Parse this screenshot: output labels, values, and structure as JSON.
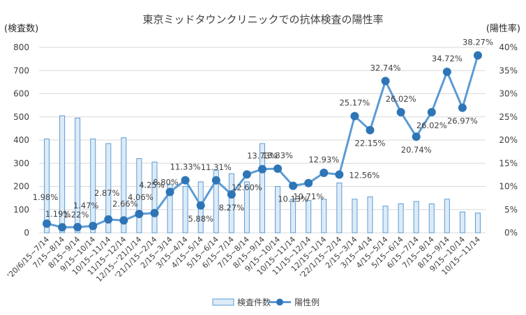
{
  "chart_data": {
    "type": "bar",
    "title": "東京ミッドタウンクリニックでの抗体検査の陽性率",
    "y_left_label": "(検査数)",
    "y_right_label": "(陽性率)",
    "y_left_ticks": [
      "0",
      "100",
      "200",
      "300",
      "400",
      "500",
      "600",
      "700",
      "800"
    ],
    "y_right_ticks": [
      "0%",
      "5%",
      "10%",
      "15%",
      "20%",
      "25%",
      "30%",
      "35%",
      "40%"
    ],
    "ylim_left": [
      0,
      800
    ],
    "ylim_right": [
      0,
      40
    ],
    "grid": true,
    "legend_position": "bottom",
    "categories": [
      "'20/6/15~7/14",
      "7/15~8/14",
      "8/15~9/14",
      "9/15~10/14",
      "10/15~11/14",
      "11/15~12/14",
      "12/15~'21/1/14",
      "'21/1/15~2/14",
      "2/15~3/14",
      "3/15~4/14",
      "4/15~5/14",
      "5/15~6/14",
      "6/15~7/14",
      "7/15~8/14",
      "8/15~9/14",
      "9/15~10/14",
      "10/15~11/14",
      "11/15~12/14",
      "12/15~1/14",
      "'22/1/15~2/14",
      "2/15~3/14",
      "3/15~4/14",
      "4/15~5/14",
      "5/15~6/14",
      "6/15~7/14",
      "7/15~8/14",
      "8/15~9/14",
      "9/15~10/14",
      "10/15~11/14"
    ],
    "series": [
      {
        "name": "検査件数",
        "type": "bar",
        "axis": "left",
        "color": "#ddebf7",
        "border": "#5b9bd5",
        "values": [
          405,
          505,
          495,
          405,
          385,
          410,
          320,
          305,
          210,
          200,
          220,
          270,
          255,
          220,
          385,
          200,
          145,
          140,
          145,
          215,
          145,
          155,
          115,
          125,
          135,
          125,
          145,
          90,
          85
        ]
      },
      {
        "name": "陽性例",
        "type": "line",
        "axis": "right",
        "color": "#5b9bd5",
        "marker_color": "#2e75b6",
        "values": [
          1.98,
          1.19,
          1.22,
          1.47,
          2.87,
          2.66,
          4.06,
          4.25,
          8.8,
          11.33,
          5.88,
          11.31,
          8.27,
          12.6,
          13.73,
          13.83,
          10.13,
          10.71,
          12.93,
          12.56,
          25.17,
          22.15,
          32.74,
          26.02,
          20.74,
          26.02,
          34.72,
          26.97,
          38.27
        ],
        "data_labels": [
          "1.98%",
          "1.19%",
          "1.22%",
          "1.47%",
          "2.87%",
          "2.66%",
          "4.06%",
          "4.25%",
          "8.80%",
          "11.33%",
          "5.88%",
          "11.31%",
          "8.27%",
          "12.60%",
          "13.73%",
          "13.83%",
          "10.13%",
          "10.71%",
          "12.93%",
          "12.56%",
          "25.17%",
          "22.15%",
          "32.74%",
          "26.02%",
          "20.74%",
          "26.02%",
          "34.72%",
          "26.97%",
          "38.27%"
        ]
      }
    ]
  }
}
